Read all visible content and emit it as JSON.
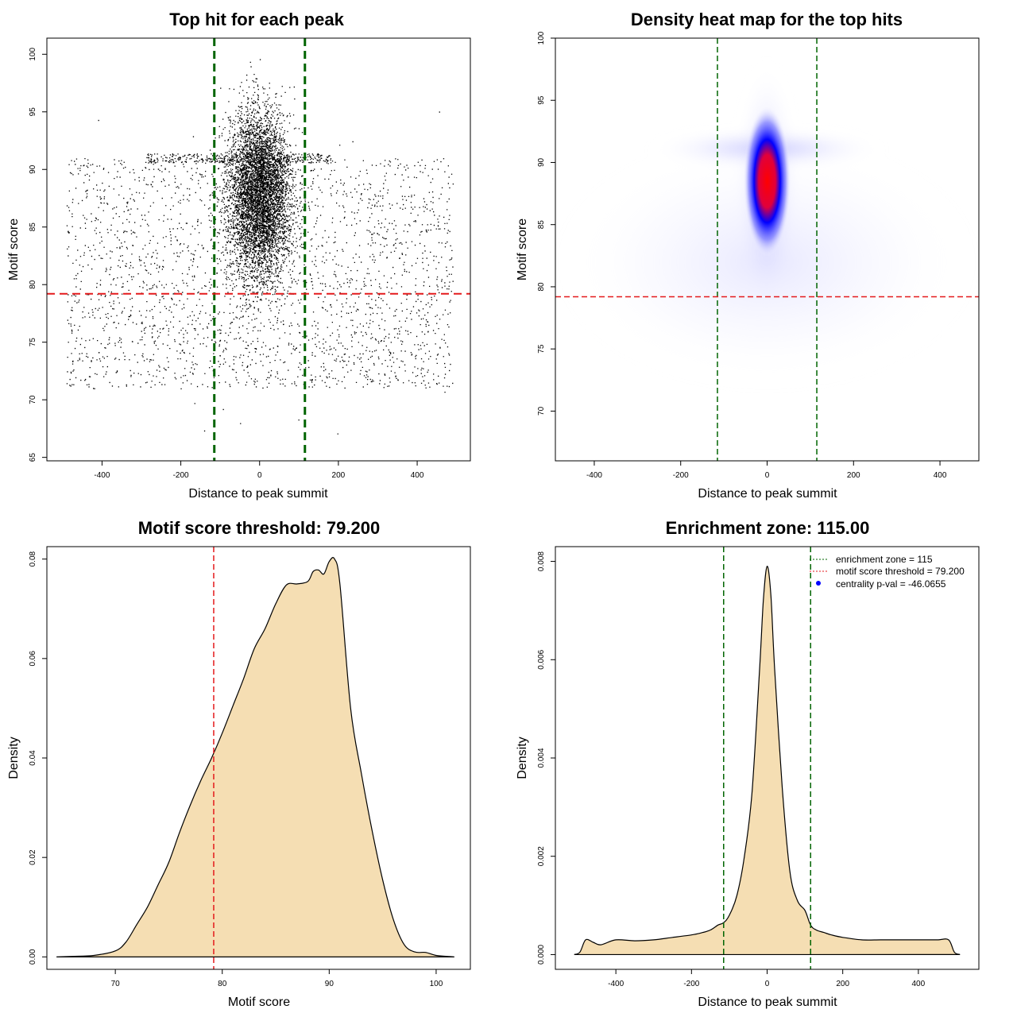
{
  "chart_data": [
    {
      "id": "scatter",
      "type": "scatter",
      "title": "Top hit for each peak",
      "xlabel": "Distance to peak summit",
      "ylabel": "Motif score",
      "xlim": [
        -540,
        535
      ],
      "ylim": [
        64.7,
        101.4
      ],
      "xticks": [
        -400,
        -200,
        0,
        200,
        400
      ],
      "yticks": [
        65,
        70,
        75,
        80,
        85,
        90,
        95,
        100
      ],
      "vlines": [
        -115,
        115
      ],
      "hline": 79.2,
      "colors": {
        "points": "#000000",
        "vline": "#006400",
        "hline": "#e41a1c"
      },
      "point_cloud": {
        "center_x": 0,
        "center_y": 88,
        "n_points": 9000,
        "x_range": [
          -490,
          490
        ],
        "score_range": [
          66,
          100
        ]
      }
    },
    {
      "id": "heat",
      "type": "heatmap",
      "title": "Density heat map for the top hits",
      "xlabel": "Distance to peak summit",
      "ylabel": "Motif score",
      "xlim": [
        -490,
        490
      ],
      "ylim": [
        66,
        100
      ],
      "xticks": [
        -400,
        -200,
        0,
        200,
        400
      ],
      "yticks": [
        70,
        75,
        80,
        85,
        90,
        95,
        100
      ],
      "vlines": [
        -115,
        115
      ],
      "hline": 79.2,
      "peak": {
        "x": 0,
        "y": 88.5
      },
      "colors": {
        "low": "#ffffff",
        "mid": "#0000ff",
        "high": "#ff0000",
        "vline": "#006400",
        "hline": "#e41a1c"
      }
    },
    {
      "id": "score-density",
      "type": "area",
      "title": "Motif score threshold: 79.200",
      "xlabel": "Motif score",
      "ylabel": "Density",
      "xlim": [
        63.6,
        103.2
      ],
      "ylim": [
        -0.0025,
        0.0825
      ],
      "xticks": [
        70,
        80,
        90,
        100
      ],
      "yticks": [
        0.0,
        0.02,
        0.04,
        0.06,
        0.08
      ],
      "ytick_labels": [
        "0.00",
        "0.02",
        "0.04",
        "0.06",
        "0.08"
      ],
      "vline": 79.2,
      "x": [
        64.5,
        66,
        68,
        70,
        71,
        72,
        73,
        74,
        75,
        76,
        77,
        78,
        79,
        80,
        81,
        82,
        83,
        84,
        85,
        86,
        87,
        88,
        88.5,
        89,
        89.5,
        90,
        90.5,
        91,
        92,
        93,
        94,
        95,
        96,
        97,
        98,
        99,
        100,
        101,
        101.7
      ],
      "values": [
        0.0,
        0.0001,
        0.0003,
        0.0012,
        0.003,
        0.0065,
        0.01,
        0.0145,
        0.019,
        0.025,
        0.0305,
        0.0355,
        0.04,
        0.045,
        0.0505,
        0.056,
        0.062,
        0.066,
        0.071,
        0.0748,
        0.075,
        0.0755,
        0.0775,
        0.0778,
        0.077,
        0.0795,
        0.08,
        0.075,
        0.05,
        0.037,
        0.0255,
        0.0155,
        0.0075,
        0.0025,
        0.001,
        0.0009,
        0.0003,
        0.0001,
        0.0
      ],
      "colors": {
        "fill": "#f5deb3",
        "line": "#000000",
        "vline": "#e41a1c"
      }
    },
    {
      "id": "dist-density",
      "type": "area",
      "title": "Enrichment zone: 115.00",
      "xlabel": "Distance to peak summit",
      "ylabel": "Density",
      "xlim": [
        -560,
        560
      ],
      "ylim": [
        -0.0003,
        0.0083
      ],
      "xticks": [
        -400,
        -200,
        0,
        200,
        400
      ],
      "yticks": [
        0.0,
        0.002,
        0.004,
        0.006,
        0.008
      ],
      "ytick_labels": [
        "0.000",
        "0.002",
        "0.004",
        "0.006",
        "0.008"
      ],
      "vlines": [
        -115,
        115
      ],
      "x": [
        -510,
        -495,
        -480,
        -460,
        -440,
        -400,
        -350,
        -300,
        -250,
        -200,
        -170,
        -150,
        -130,
        -115,
        -100,
        -80,
        -60,
        -40,
        -20,
        -10,
        0,
        10,
        20,
        40,
        60,
        80,
        100,
        115,
        130,
        150,
        170,
        200,
        250,
        300,
        350,
        400,
        450,
        480,
        495,
        510
      ],
      "values": [
        0.0,
        5e-05,
        0.0003,
        0.00025,
        0.0002,
        0.0003,
        0.00028,
        0.0003,
        0.00035,
        0.0004,
        0.00045,
        0.0005,
        0.0006,
        0.00065,
        0.0008,
        0.0012,
        0.002,
        0.0033,
        0.0058,
        0.0072,
        0.0079,
        0.0073,
        0.0058,
        0.0034,
        0.0017,
        0.0011,
        0.0009,
        0.0006,
        0.0005,
        0.00045,
        0.0004,
        0.00035,
        0.0003,
        0.0003,
        0.0003,
        0.0003,
        0.0003,
        0.0003,
        5e-05,
        0.0
      ],
      "legend": [
        "enrichment zone = 115",
        "motif score threshold = 79.200",
        "centrality p-val = -46.0655"
      ],
      "colors": {
        "fill": "#f5deb3",
        "line": "#000000",
        "vline": "#006400",
        "legend_threshold": "#e41a1c",
        "legend_dot": "#0000ff"
      }
    }
  ]
}
